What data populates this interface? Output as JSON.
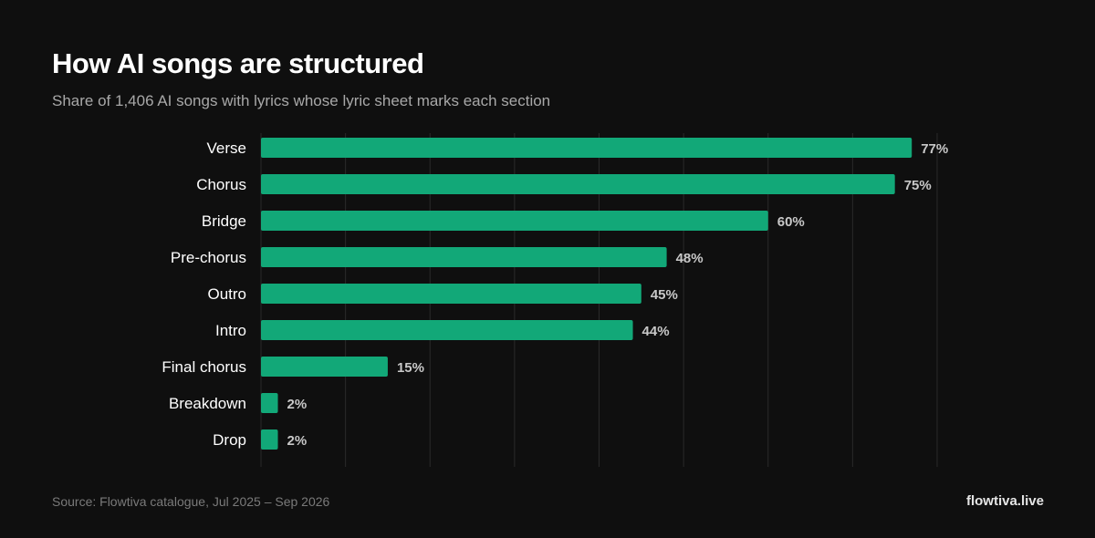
{
  "header": {
    "title": "How AI songs are structured",
    "subtitle": "Share of 1,406 AI songs with lyrics whose lyric sheet marks each section"
  },
  "footer": {
    "source": "Source: Flowtiva catalogue, Jul 2025 – Sep 2026",
    "brand": "flowtiva.live"
  },
  "colors": {
    "background": "#0f0f0f",
    "bar": "#12a878",
    "grid": "#2a2a2a",
    "category_label": "#ffffff",
    "value_label": "#c8c8c8"
  },
  "chart_data": {
    "type": "bar",
    "orientation": "horizontal",
    "categories": [
      "Verse",
      "Chorus",
      "Bridge",
      "Pre-chorus",
      "Outro",
      "Intro",
      "Final chorus",
      "Breakdown",
      "Drop"
    ],
    "values": [
      77,
      75,
      60,
      48,
      45,
      44,
      15,
      2,
      2
    ],
    "value_labels": [
      "77%",
      "75%",
      "60%",
      "48%",
      "45%",
      "44%",
      "15%",
      "2%",
      "2%"
    ],
    "unit": "%",
    "xlim": [
      0,
      80
    ],
    "grid": true
  }
}
